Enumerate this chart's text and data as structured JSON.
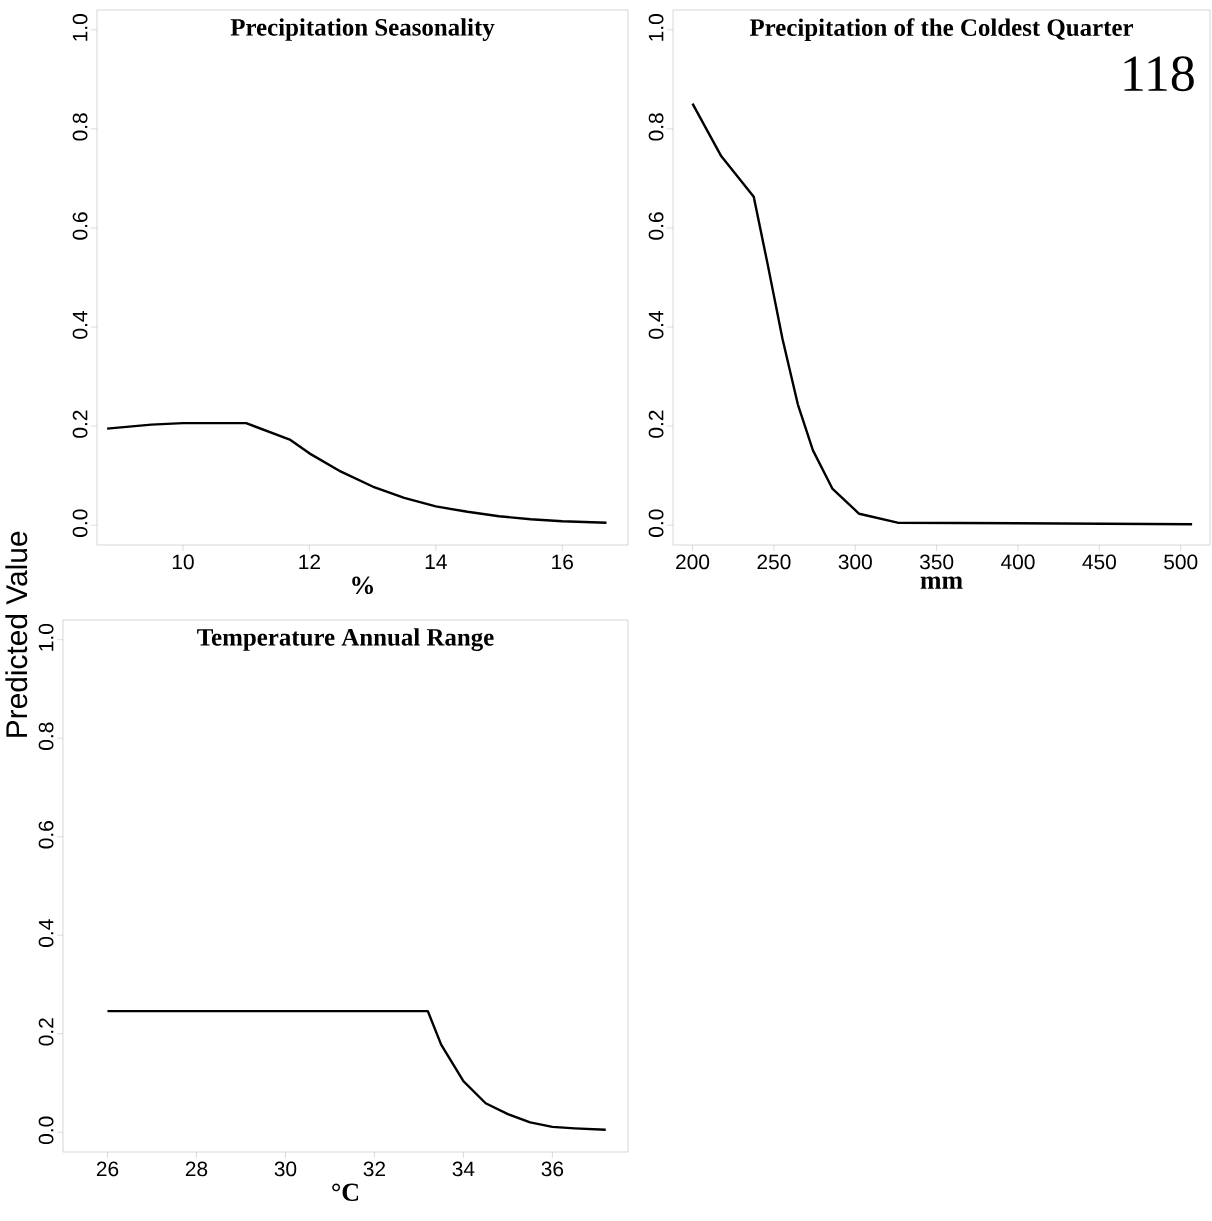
{
  "chart_data": [
    {
      "type": "line",
      "title": "Precipitation Seasonality",
      "xlabel": "%",
      "ylabel": "Predicted Value",
      "color": "#000000",
      "x": [
        8.8,
        9.5,
        10,
        11,
        11.7,
        12,
        12.5,
        13,
        13.5,
        14,
        14.5,
        15,
        15.5,
        16,
        16.7
      ],
      "values": [
        0.195,
        0.203,
        0.206,
        0.206,
        0.172,
        0.145,
        0.108,
        0.078,
        0.055,
        0.038,
        0.027,
        0.018,
        0.012,
        0.008,
        0.005
      ],
      "xlim": [
        8.64,
        17.04
      ],
      "ylim": [
        -0.04,
        1.04
      ],
      "xticks": [
        10,
        12,
        14,
        16
      ],
      "yticks": [
        {
          "value": 0,
          "label": "0.0"
        },
        {
          "value": 0.2,
          "label": "0.2"
        },
        {
          "value": 0.4,
          "label": "0.4"
        },
        {
          "value": 0.6,
          "label": "0.6"
        },
        {
          "value": 0.8,
          "label": "0.8"
        },
        {
          "value": 1,
          "label": "1.0"
        }
      ]
    },
    {
      "type": "line",
      "title": "Precipitation of the Coldest Quarter",
      "xlabel": "mm",
      "color": "#000000",
      "annotations": [
        "118"
      ],
      "x": [
        200,
        217.6,
        237.6,
        245.9,
        255.3,
        264.7,
        274,
        285.9,
        302.4,
        326,
        507
      ],
      "values": [
        0.851,
        0.745,
        0.663,
        0.531,
        0.376,
        0.244,
        0.151,
        0.074,
        0.023,
        0.005,
        0.002
      ],
      "xlim": [
        188,
        518
      ],
      "ylim": [
        -0.04,
        1.04
      ],
      "xticks": [
        200,
        250,
        300,
        350,
        400,
        450,
        500
      ],
      "yticks": [
        {
          "value": 0,
          "label": "0.0"
        },
        {
          "value": 0.2,
          "label": "0.2"
        },
        {
          "value": 0.4,
          "label": "0.4"
        },
        {
          "value": 0.6,
          "label": "0.6"
        },
        {
          "value": 0.8,
          "label": "0.8"
        },
        {
          "value": 1,
          "label": "1.0"
        }
      ]
    },
    {
      "type": "line",
      "title": "Temperature Annual Range",
      "xlabel": "°C",
      "color": "#000000",
      "x": [
        26,
        33.2,
        33.5,
        34,
        34.5,
        35,
        35.5,
        36,
        36.5,
        37.2
      ],
      "values": [
        0.246,
        0.246,
        0.178,
        0.104,
        0.059,
        0.037,
        0.02,
        0.011,
        0.008,
        0.005
      ],
      "xlim": [
        25.0,
        37.7
      ],
      "ylim": [
        -0.04,
        1.04
      ],
      "xticks": [
        26,
        28,
        30,
        32,
        34,
        36
      ],
      "yticks": [
        {
          "value": 0,
          "label": "0.0"
        },
        {
          "value": 0.2,
          "label": "0.2"
        },
        {
          "value": 0.4,
          "label": "0.4"
        },
        {
          "value": 0.6,
          "label": "0.6"
        },
        {
          "value": 0.8,
          "label": "0.8"
        },
        {
          "value": 1,
          "label": "1.0"
        }
      ]
    }
  ]
}
